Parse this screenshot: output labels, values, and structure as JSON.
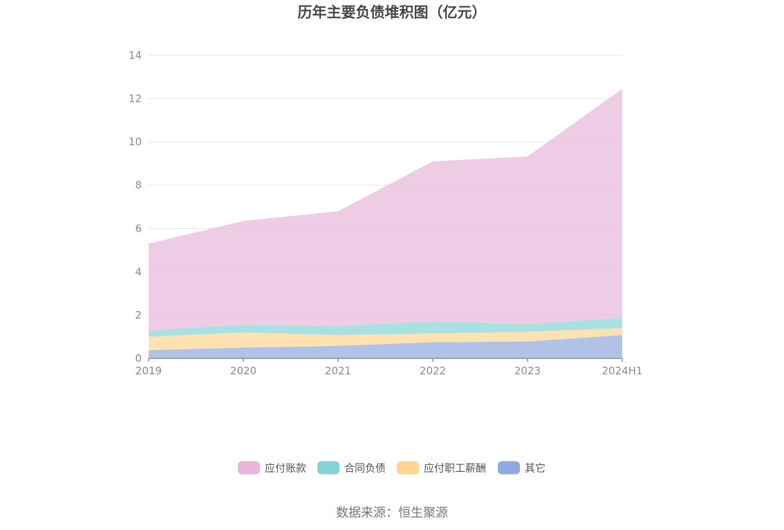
{
  "source_label": "数据来源：恒生聚源",
  "chart_data": {
    "type": "area",
    "stacked": true,
    "title": "历年主要负债堆积图（亿元）",
    "categories": [
      "2019",
      "2020",
      "2021",
      "2022",
      "2023",
      "2024H1"
    ],
    "ylim": [
      0,
      14
    ],
    "yticks": [
      0,
      2,
      4,
      6,
      8,
      10,
      12,
      14
    ],
    "grid": true,
    "legend_position": "bottom",
    "series": [
      {
        "name": "其它",
        "color": "#8faadc",
        "values": [
          0.38,
          0.5,
          0.58,
          0.75,
          0.78,
          1.08
        ]
      },
      {
        "name": "应付职工薪酬",
        "color": "#ffd591",
        "values": [
          0.62,
          0.7,
          0.5,
          0.4,
          0.45,
          0.32
        ]
      },
      {
        "name": "合同负债",
        "color": "#85d3d6",
        "values": [
          0.3,
          0.35,
          0.42,
          0.55,
          0.35,
          0.48
        ]
      },
      {
        "name": "应付账款",
        "color": "#e8b6da",
        "values": [
          4.0,
          4.8,
          5.3,
          7.4,
          7.75,
          10.57
        ]
      }
    ],
    "legend_order": [
      "应付账款",
      "合同负债",
      "应付职工薪酬",
      "其它"
    ]
  }
}
